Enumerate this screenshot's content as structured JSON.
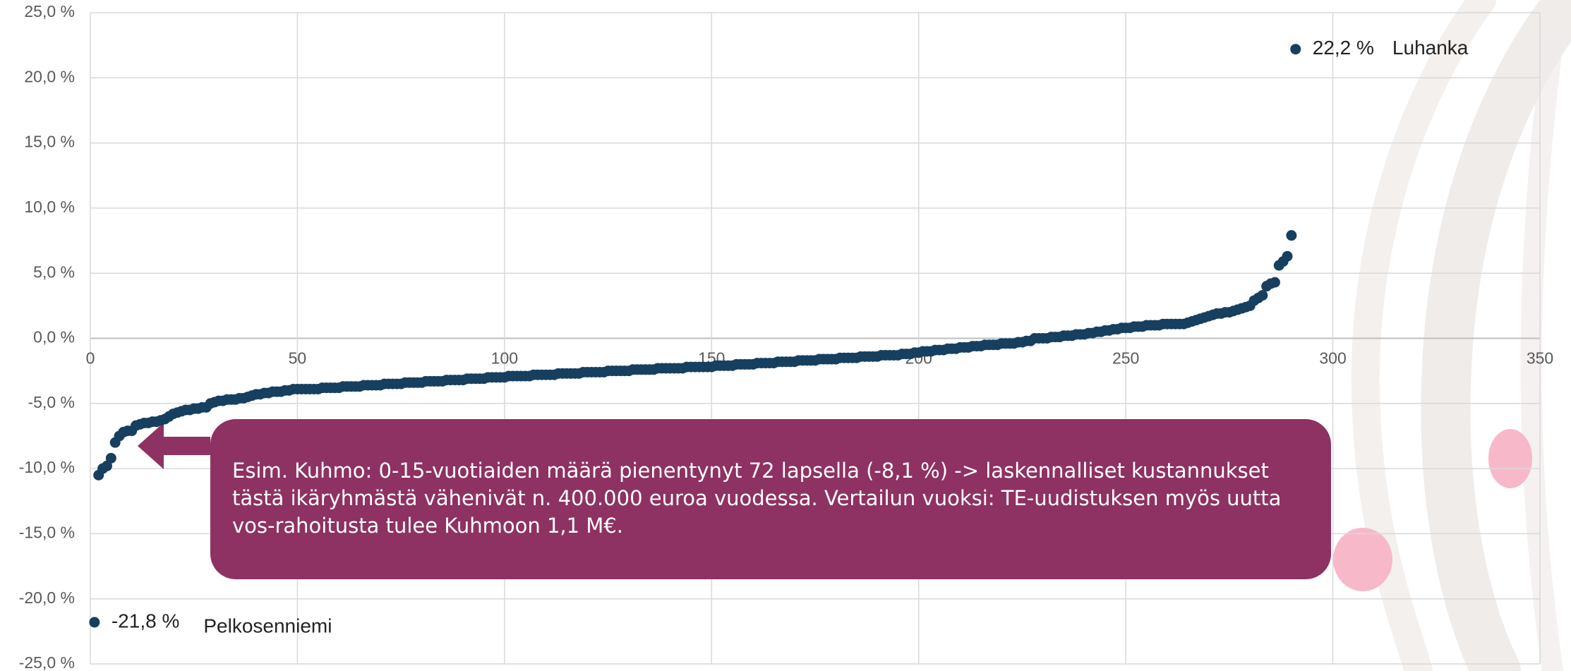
{
  "chart_data": {
    "type": "scatter",
    "xlim": [
      0,
      350
    ],
    "xticks": [
      0,
      50,
      100,
      150,
      200,
      250,
      300,
      350
    ],
    "ylim": [
      -25,
      25
    ],
    "yticks": [
      {
        "value": 25,
        "label": "25,0 %"
      },
      {
        "value": 20,
        "label": "20,0 %"
      },
      {
        "value": 15,
        "label": "15,0 %"
      },
      {
        "value": 10,
        "label": "10,0 %"
      },
      {
        "value": 5,
        "label": "5,0 %"
      },
      {
        "value": 0,
        "label": "0,0 %"
      },
      {
        "value": -5,
        "label": "-5,0 %"
      },
      {
        "value": -10,
        "label": "-10,0 %"
      },
      {
        "value": -15,
        "label": "-15,0 %"
      },
      {
        "value": -20,
        "label": "-20,0 %"
      },
      {
        "value": -25,
        "label": "-25,0 %"
      }
    ],
    "grid": true,
    "annotation": "Esim. Kuhmo: 0-15-vuotiaiden määrä pienentynyt 72 lapsella (-8,1 %) -> laskennalliset kustannukset tästä ikäryhmästä vähenivät n. 400.000 euroa vuodessa. Vertailun vuoksi: TE-uudistuksen myös uutta vos-rahoitusta tulee Kuhmoon 1,1 M€.",
    "series": [
      {
        "name": "Pelkosenniemi",
        "color": "#173f5f",
        "x": [
          1
        ],
        "values": [
          -21.8
        ],
        "value_labels": [
          "-21,8 %"
        ]
      },
      {
        "color": "#173f5f",
        "x": [
          2,
          3,
          4,
          5,
          6,
          7,
          8,
          9,
          10,
          11,
          12,
          13,
          14,
          15,
          16,
          17,
          18,
          19,
          20,
          21,
          22,
          23,
          24,
          25,
          26,
          27,
          28,
          29,
          30,
          31,
          32,
          33,
          34,
          35,
          36,
          37,
          38,
          39,
          40,
          41,
          42,
          43,
          44,
          45,
          46,
          47,
          48,
          49,
          50,
          51,
          52,
          53,
          54,
          55,
          56,
          57,
          58,
          59,
          60,
          61,
          62,
          63,
          64,
          65,
          66,
          67,
          68,
          69,
          70,
          71,
          72,
          73,
          74,
          75,
          76,
          77,
          78,
          79,
          80,
          81,
          82,
          83,
          84,
          85,
          86,
          87,
          88,
          89,
          90,
          91,
          92,
          93,
          94,
          95,
          96,
          97,
          98,
          99,
          100,
          101,
          102,
          103,
          104,
          105,
          106,
          107,
          108,
          109,
          110,
          111,
          112,
          113,
          114,
          115,
          116,
          117,
          118,
          119,
          120,
          121,
          122,
          123,
          124,
          125,
          126,
          127,
          128,
          129,
          130,
          131,
          132,
          133,
          134,
          135,
          136,
          137,
          138,
          139,
          140,
          141,
          142,
          143,
          144,
          145,
          146,
          147,
          148,
          149,
          150,
          151,
          152,
          153,
          154,
          155,
          156,
          157,
          158,
          159,
          160,
          161,
          162,
          163,
          164,
          165,
          166,
          167,
          168,
          169,
          170,
          171,
          172,
          173,
          174,
          175,
          176,
          177,
          178,
          179,
          180,
          181,
          182,
          183,
          184,
          185,
          186,
          187,
          188,
          189,
          190,
          191,
          192,
          193,
          194,
          195,
          196,
          197,
          198,
          199,
          200,
          201,
          202,
          203,
          204,
          205,
          206,
          207,
          208,
          209,
          210,
          211,
          212,
          213,
          214,
          215,
          216,
          217,
          218,
          219,
          220,
          221,
          222,
          223,
          224,
          225,
          226,
          227,
          228,
          229,
          230,
          231,
          232,
          233,
          234,
          235,
          236,
          237,
          238,
          239,
          240,
          241,
          242,
          243,
          244,
          245,
          246,
          247,
          248,
          249,
          250,
          251,
          252,
          253,
          254,
          255,
          256,
          257,
          258,
          259,
          260,
          261,
          262,
          263,
          264,
          265,
          266,
          267,
          268,
          269,
          270,
          271,
          272,
          273,
          274,
          275,
          276,
          277,
          278,
          279,
          280,
          281,
          282,
          283,
          284,
          285,
          286,
          287,
          288,
          289,
          290
        ],
        "values": [
          -10.5,
          -10.0,
          -9.8,
          -9.2,
          -8.0,
          -7.5,
          -7.2,
          -7.1,
          -7.1,
          -6.7,
          -6.6,
          -6.5,
          -6.5,
          -6.4,
          -6.4,
          -6.3,
          -6.2,
          -6.0,
          -5.8,
          -5.7,
          -5.6,
          -5.5,
          -5.5,
          -5.4,
          -5.4,
          -5.3,
          -5.3,
          -5.0,
          -4.9,
          -4.8,
          -4.8,
          -4.7,
          -4.7,
          -4.7,
          -4.6,
          -4.6,
          -4.5,
          -4.4,
          -4.3,
          -4.3,
          -4.2,
          -4.2,
          -4.1,
          -4.1,
          -4.1,
          -4.0,
          -4.0,
          -3.9,
          -3.9,
          -3.9,
          -3.9,
          -3.9,
          -3.9,
          -3.9,
          -3.8,
          -3.8,
          -3.8,
          -3.8,
          -3.8,
          -3.7,
          -3.7,
          -3.7,
          -3.7,
          -3.7,
          -3.6,
          -3.6,
          -3.6,
          -3.6,
          -3.6,
          -3.5,
          -3.5,
          -3.5,
          -3.5,
          -3.5,
          -3.4,
          -3.4,
          -3.4,
          -3.4,
          -3.4,
          -3.3,
          -3.3,
          -3.3,
          -3.3,
          -3.3,
          -3.2,
          -3.2,
          -3.2,
          -3.2,
          -3.2,
          -3.1,
          -3.1,
          -3.1,
          -3.1,
          -3.1,
          -3.0,
          -3.0,
          -3.0,
          -3.0,
          -3.0,
          -2.9,
          -2.9,
          -2.9,
          -2.9,
          -2.9,
          -2.9,
          -2.8,
          -2.8,
          -2.8,
          -2.8,
          -2.8,
          -2.8,
          -2.7,
          -2.7,
          -2.7,
          -2.7,
          -2.7,
          -2.7,
          -2.6,
          -2.6,
          -2.6,
          -2.6,
          -2.6,
          -2.6,
          -2.5,
          -2.5,
          -2.5,
          -2.5,
          -2.5,
          -2.5,
          -2.4,
          -2.4,
          -2.4,
          -2.4,
          -2.4,
          -2.4,
          -2.3,
          -2.3,
          -2.3,
          -2.3,
          -2.3,
          -2.3,
          -2.3,
          -2.2,
          -2.2,
          -2.2,
          -2.2,
          -2.2,
          -2.2,
          -2.2,
          -2.1,
          -2.1,
          -2.1,
          -2.1,
          -2.1,
          -2.0,
          -2.0,
          -2.0,
          -2.0,
          -2.0,
          -1.9,
          -1.9,
          -1.9,
          -1.9,
          -1.9,
          -1.8,
          -1.8,
          -1.8,
          -1.8,
          -1.8,
          -1.7,
          -1.7,
          -1.7,
          -1.7,
          -1.7,
          -1.6,
          -1.6,
          -1.6,
          -1.6,
          -1.6,
          -1.5,
          -1.5,
          -1.5,
          -1.5,
          -1.5,
          -1.4,
          -1.4,
          -1.4,
          -1.4,
          -1.4,
          -1.3,
          -1.3,
          -1.3,
          -1.3,
          -1.3,
          -1.2,
          -1.2,
          -1.2,
          -1.1,
          -1.1,
          -1.0,
          -1.0,
          -1.0,
          -0.9,
          -0.9,
          -0.9,
          -0.8,
          -0.8,
          -0.8,
          -0.7,
          -0.7,
          -0.7,
          -0.6,
          -0.6,
          -0.6,
          -0.5,
          -0.5,
          -0.5,
          -0.5,
          -0.4,
          -0.4,
          -0.4,
          -0.4,
          -0.3,
          -0.3,
          -0.2,
          -0.2,
          0.0,
          0.0,
          0.0,
          0.0,
          0.1,
          0.1,
          0.1,
          0.2,
          0.2,
          0.2,
          0.3,
          0.3,
          0.3,
          0.4,
          0.4,
          0.5,
          0.5,
          0.6,
          0.6,
          0.7,
          0.7,
          0.8,
          0.8,
          0.8,
          0.9,
          0.9,
          0.9,
          1.0,
          1.0,
          1.0,
          1.0,
          1.1,
          1.1,
          1.1,
          1.1,
          1.1,
          1.1,
          1.2,
          1.3,
          1.4,
          1.5,
          1.6,
          1.7,
          1.8,
          1.9,
          1.9,
          2.0,
          2.0,
          2.1,
          2.2,
          2.3,
          2.4,
          2.5,
          2.9,
          3.1,
          3.3,
          4.0,
          4.2,
          4.3,
          5.6,
          5.9,
          6.3,
          7.9
        ]
      },
      {
        "name": "Luhanka",
        "color": "#173f5f",
        "x": [
          291
        ],
        "values": [
          22.2
        ],
        "value_labels": [
          "22,2 %"
        ]
      }
    ]
  }
}
